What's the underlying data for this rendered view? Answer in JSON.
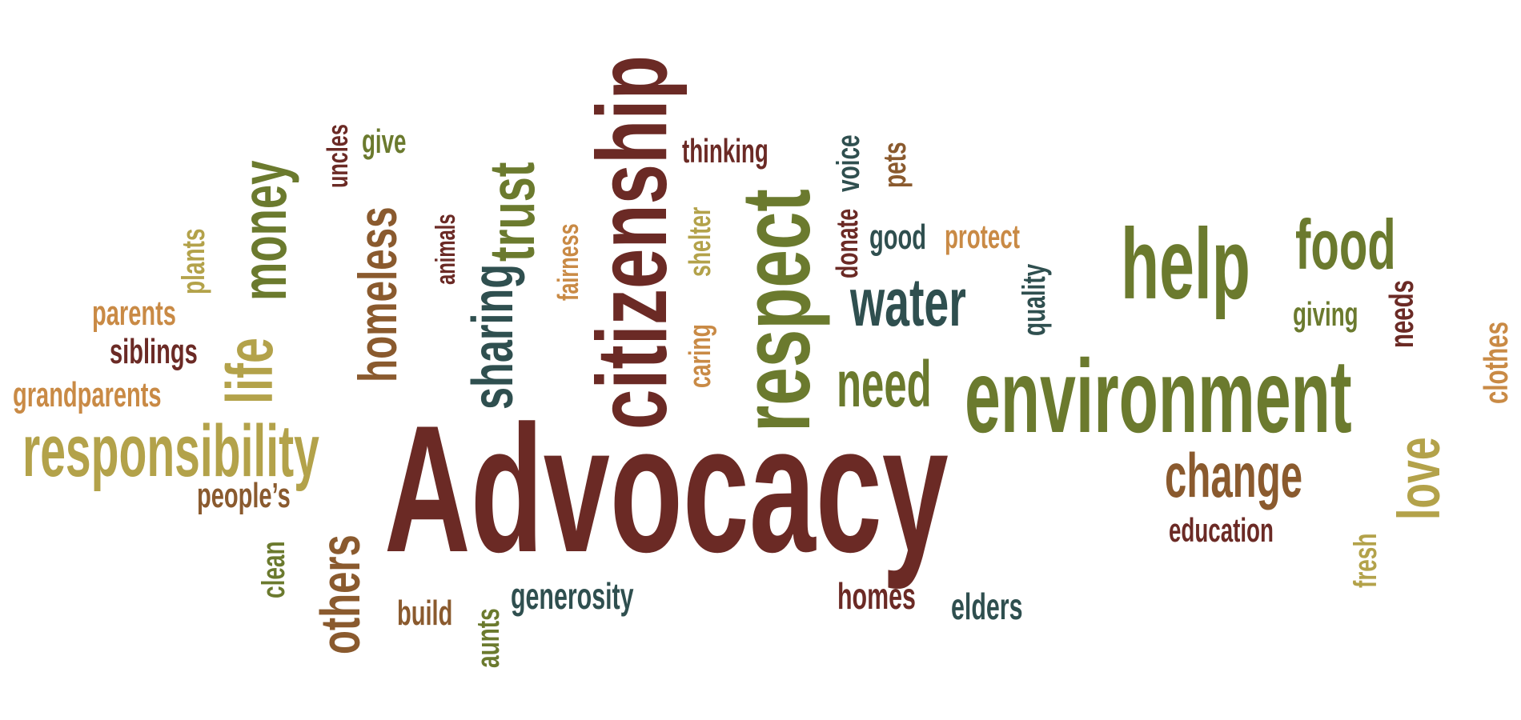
{
  "words": [
    {
      "text": "Advocacy",
      "color": "#6b2a25"
    },
    {
      "text": "environment",
      "color": "#6b7a2e"
    },
    {
      "text": "citizenship",
      "color": "#6b2a25"
    },
    {
      "text": "respect",
      "color": "#6b7a2e"
    },
    {
      "text": "responsibility",
      "color": "#b3a24a"
    },
    {
      "text": "help",
      "color": "#6b7a2e"
    },
    {
      "text": "life",
      "color": "#b3a24a"
    },
    {
      "text": "money",
      "color": "#6b7a2e"
    },
    {
      "text": "homeless",
      "color": "#8a5a2e"
    },
    {
      "text": "trust",
      "color": "#6b7a2e"
    },
    {
      "text": "sharing",
      "color": "#2f4f4f"
    },
    {
      "text": "water",
      "color": "#2f4f4f"
    },
    {
      "text": "need",
      "color": "#6b7a2e"
    },
    {
      "text": "food",
      "color": "#6b7a2e"
    },
    {
      "text": "change",
      "color": "#8a5a2e"
    },
    {
      "text": "love",
      "color": "#b3a24a"
    },
    {
      "text": "others",
      "color": "#8a5a2e"
    },
    {
      "text": "thinking",
      "color": "#6b2a25"
    },
    {
      "text": "uncles",
      "color": "#6b2a25"
    },
    {
      "text": "give",
      "color": "#6b7a2e"
    },
    {
      "text": "animals",
      "color": "#6b2a25"
    },
    {
      "text": "fairness",
      "color": "#c98a45"
    },
    {
      "text": "shelter",
      "color": "#b3a24a"
    },
    {
      "text": "caring",
      "color": "#c98a45"
    },
    {
      "text": "donate",
      "color": "#6b2a25"
    },
    {
      "text": "voice",
      "color": "#2f4f4f"
    },
    {
      "text": "pets",
      "color": "#8a5a2e"
    },
    {
      "text": "good",
      "color": "#2f4f4f"
    },
    {
      "text": "protect",
      "color": "#c98a45"
    },
    {
      "text": "quality",
      "color": "#2f4f4f"
    },
    {
      "text": "giving",
      "color": "#6b7a2e"
    },
    {
      "text": "needs",
      "color": "#6b2a25"
    },
    {
      "text": "clothes",
      "color": "#c98a45"
    },
    {
      "text": "plants",
      "color": "#b3a24a"
    },
    {
      "text": "parents",
      "color": "#c98a45"
    },
    {
      "text": "siblings",
      "color": "#6b2a25"
    },
    {
      "text": "grandparents",
      "color": "#c98a45"
    },
    {
      "text": "people’s",
      "color": "#8a5a2e"
    },
    {
      "text": "clean",
      "color": "#6b7a2e"
    },
    {
      "text": "build",
      "color": "#8a5a2e"
    },
    {
      "text": "aunts",
      "color": "#6b7a2e"
    },
    {
      "text": "generosity",
      "color": "#2f4f4f"
    },
    {
      "text": "homes",
      "color": "#6b2a25"
    },
    {
      "text": "elders",
      "color": "#2f4f4f"
    },
    {
      "text": "education",
      "color": "#6b2a25"
    },
    {
      "text": "fresh",
      "color": "#b3a24a"
    }
  ]
}
